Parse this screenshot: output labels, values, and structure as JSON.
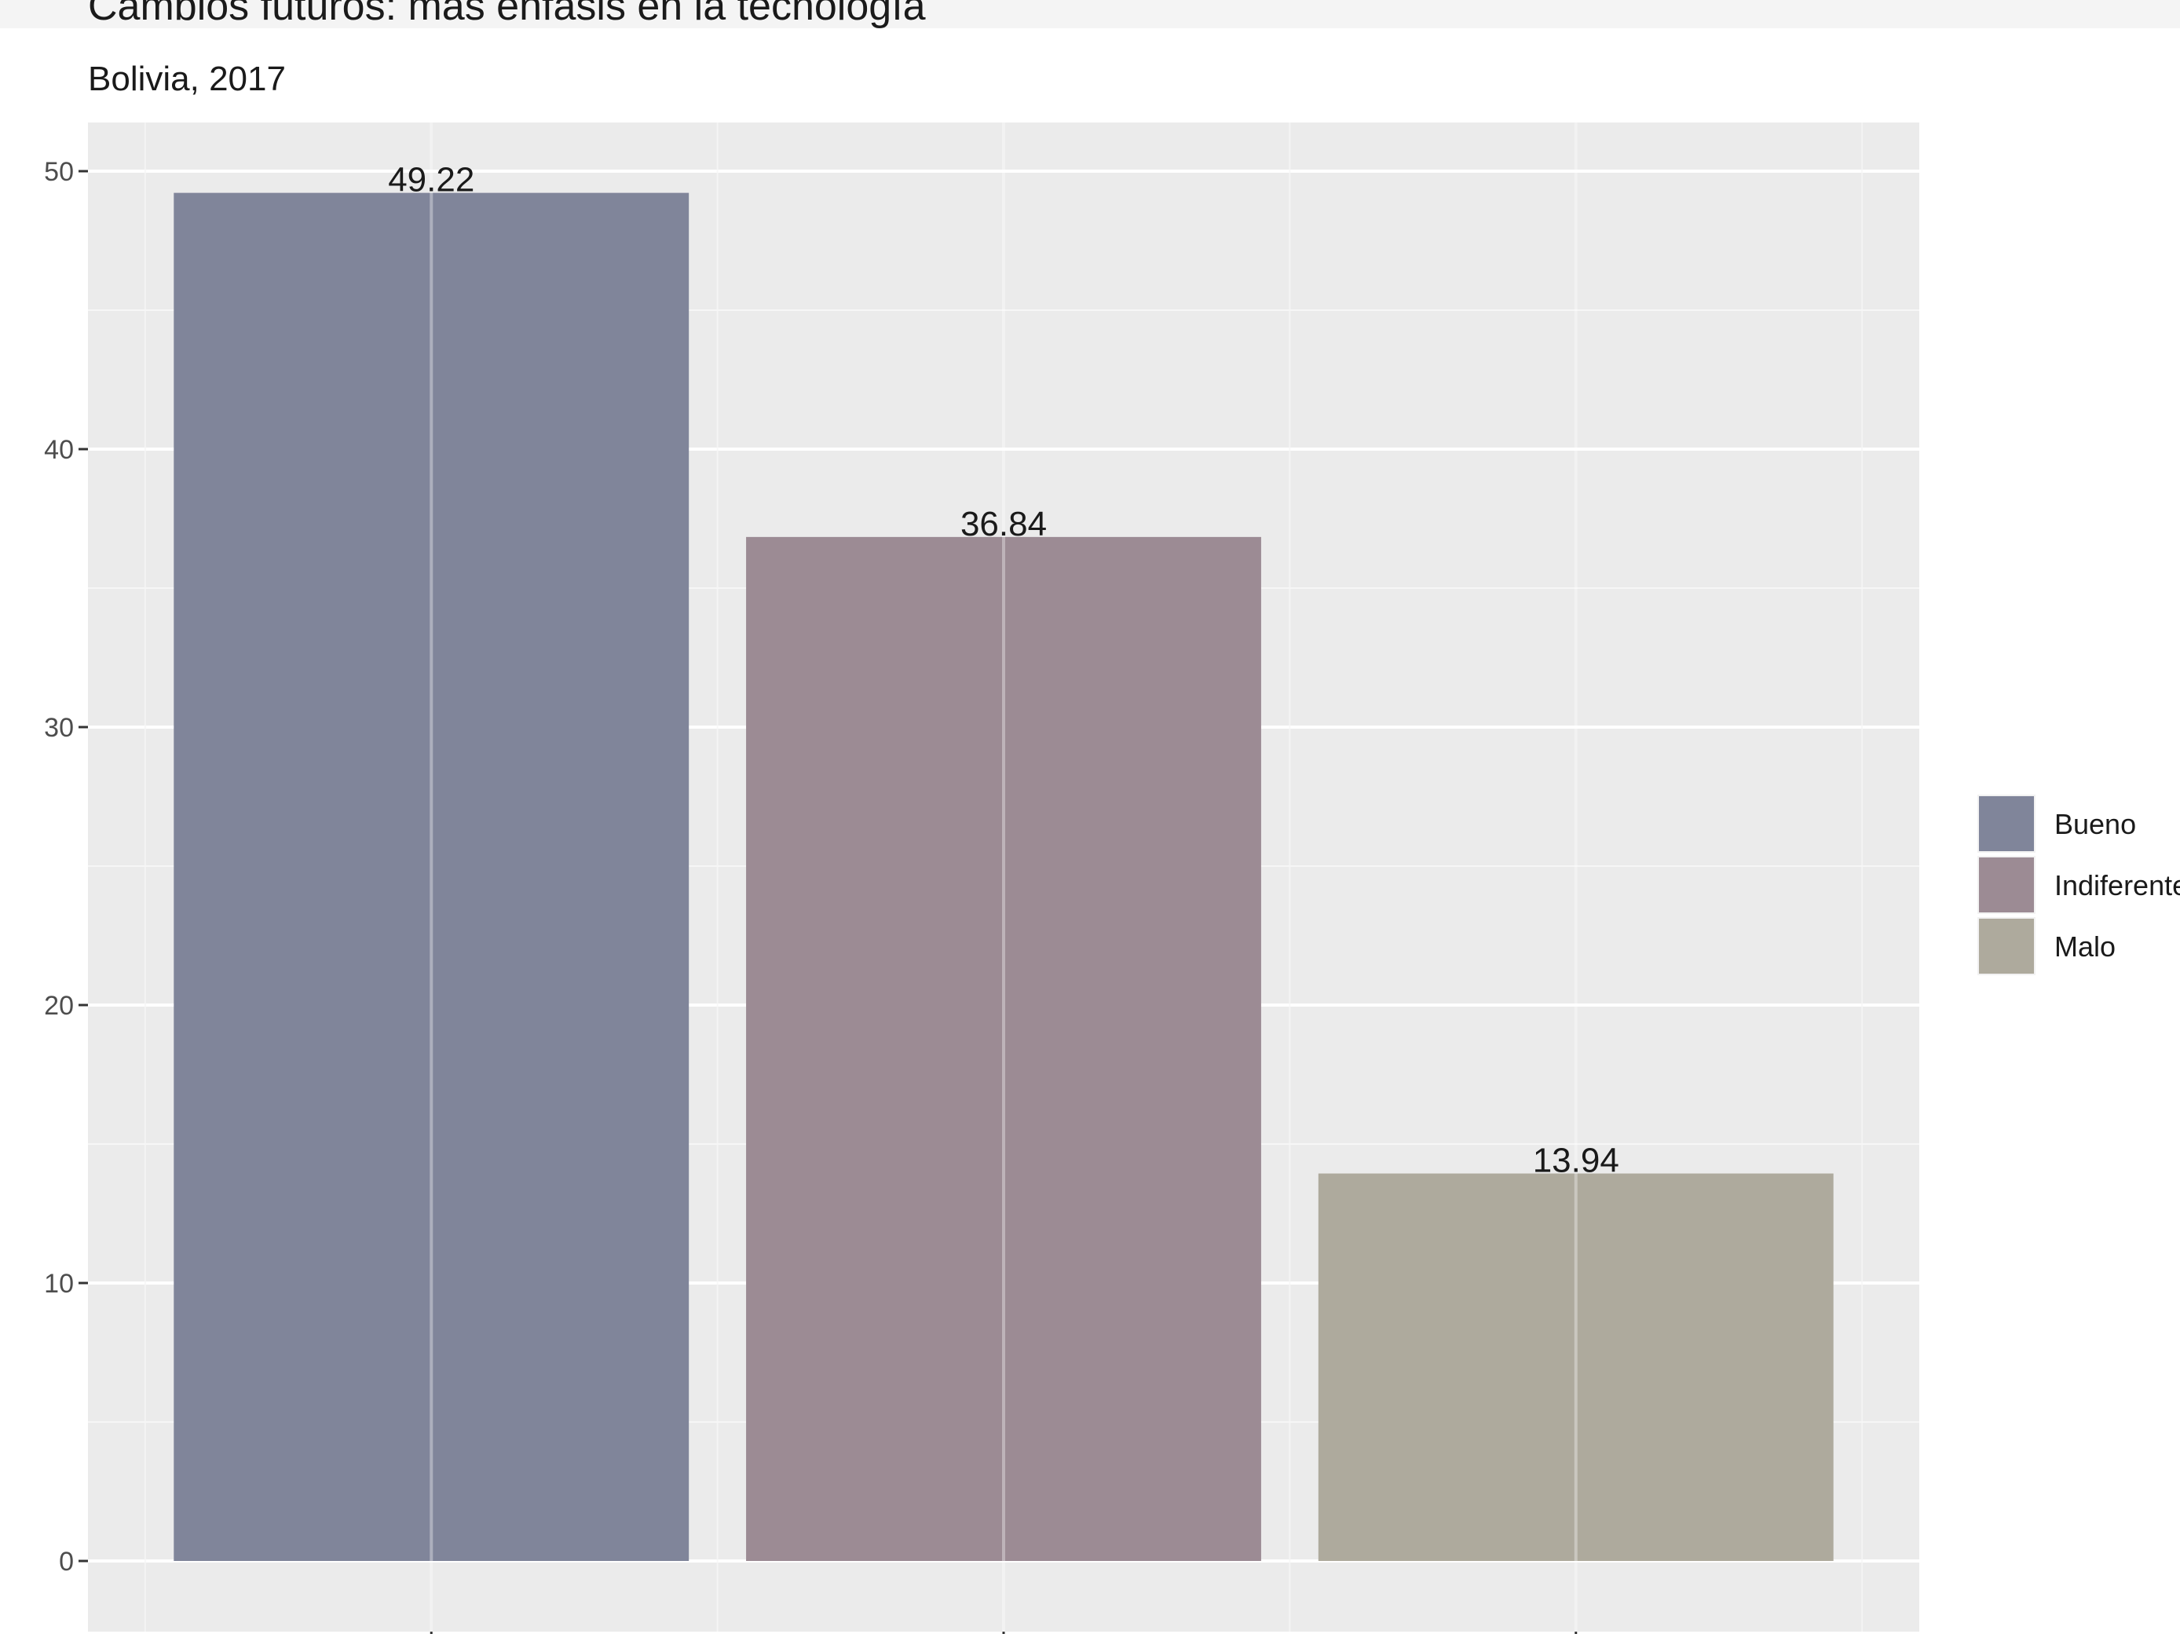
{
  "chart_data": {
    "type": "bar",
    "title": "Cambios futuros: más énfasis en la tecnología",
    "subtitle": "Bolivia, 2017",
    "xlabel": "",
    "ylabel": "",
    "categories": [
      "Bueno",
      "Indiferente",
      "Malo"
    ],
    "values": [
      49.22,
      36.84,
      13.94
    ],
    "data_labels": [
      "49.22",
      "36.84",
      "13.94"
    ],
    "colors": [
      "#80859a",
      "#9c8b94",
      "#aeaa9d"
    ],
    "ylim": [
      0,
      52
    ],
    "yticks": [
      0,
      10,
      20,
      30,
      40,
      50
    ],
    "grid": true,
    "panel_background": "#ebebeb",
    "legend": {
      "position": "right",
      "entries": [
        "Bueno",
        "Indiferente",
        "Malo"
      ]
    }
  }
}
